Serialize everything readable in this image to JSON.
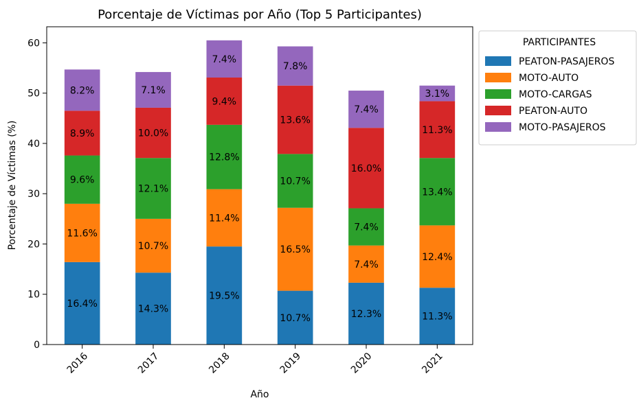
{
  "chart_data": {
    "type": "bar",
    "stacked": true,
    "title": "Porcentaje de Víctimas por Año (Top 5 Participantes)",
    "xlabel": "Año",
    "ylabel": "Porcentaje de Víctimas (%)",
    "ylim": [
      0,
      63.2
    ],
    "yticks": [
      "0",
      "10",
      "20",
      "30",
      "40",
      "50",
      "60"
    ],
    "categories": [
      "2016",
      "2017",
      "2018",
      "2019",
      "2020",
      "2021"
    ],
    "grid": false,
    "legend": {
      "title": "PARTICIPANTES",
      "placement": "outside-top-right"
    },
    "series": [
      {
        "name": "PEATON-PASAJEROS",
        "color": "#1f77b4",
        "values": [
          16.4,
          14.3,
          19.5,
          10.7,
          12.3,
          11.3
        ],
        "labels": [
          "16.4%",
          "14.3%",
          "19.5%",
          "10.7%",
          "12.3%",
          "11.3%"
        ]
      },
      {
        "name": "MOTO-AUTO",
        "color": "#ff7f0e",
        "values": [
          11.6,
          10.7,
          11.4,
          16.5,
          7.4,
          12.4
        ],
        "labels": [
          "11.6%",
          "10.7%",
          "11.4%",
          "16.5%",
          "7.4%",
          "12.4%"
        ]
      },
      {
        "name": "MOTO-CARGAS",
        "color": "#2ca02c",
        "values": [
          9.6,
          12.1,
          12.8,
          10.7,
          7.4,
          13.4
        ],
        "labels": [
          "9.6%",
          "12.1%",
          "12.8%",
          "10.7%",
          "7.4%",
          "13.4%"
        ]
      },
      {
        "name": "PEATON-AUTO",
        "color": "#d62728",
        "values": [
          8.9,
          10.0,
          9.4,
          13.6,
          16.0,
          11.3
        ],
        "labels": [
          "8.9%",
          "10.0%",
          "9.4%",
          "13.6%",
          "16.0%",
          "11.3%"
        ]
      },
      {
        "name": "MOTO-PASAJEROS",
        "color": "#9467bd",
        "values": [
          8.2,
          7.1,
          7.4,
          7.8,
          7.4,
          3.1
        ],
        "labels": [
          "8.2%",
          "7.1%",
          "7.4%",
          "7.8%",
          "7.4%",
          "3.1%"
        ]
      }
    ]
  }
}
